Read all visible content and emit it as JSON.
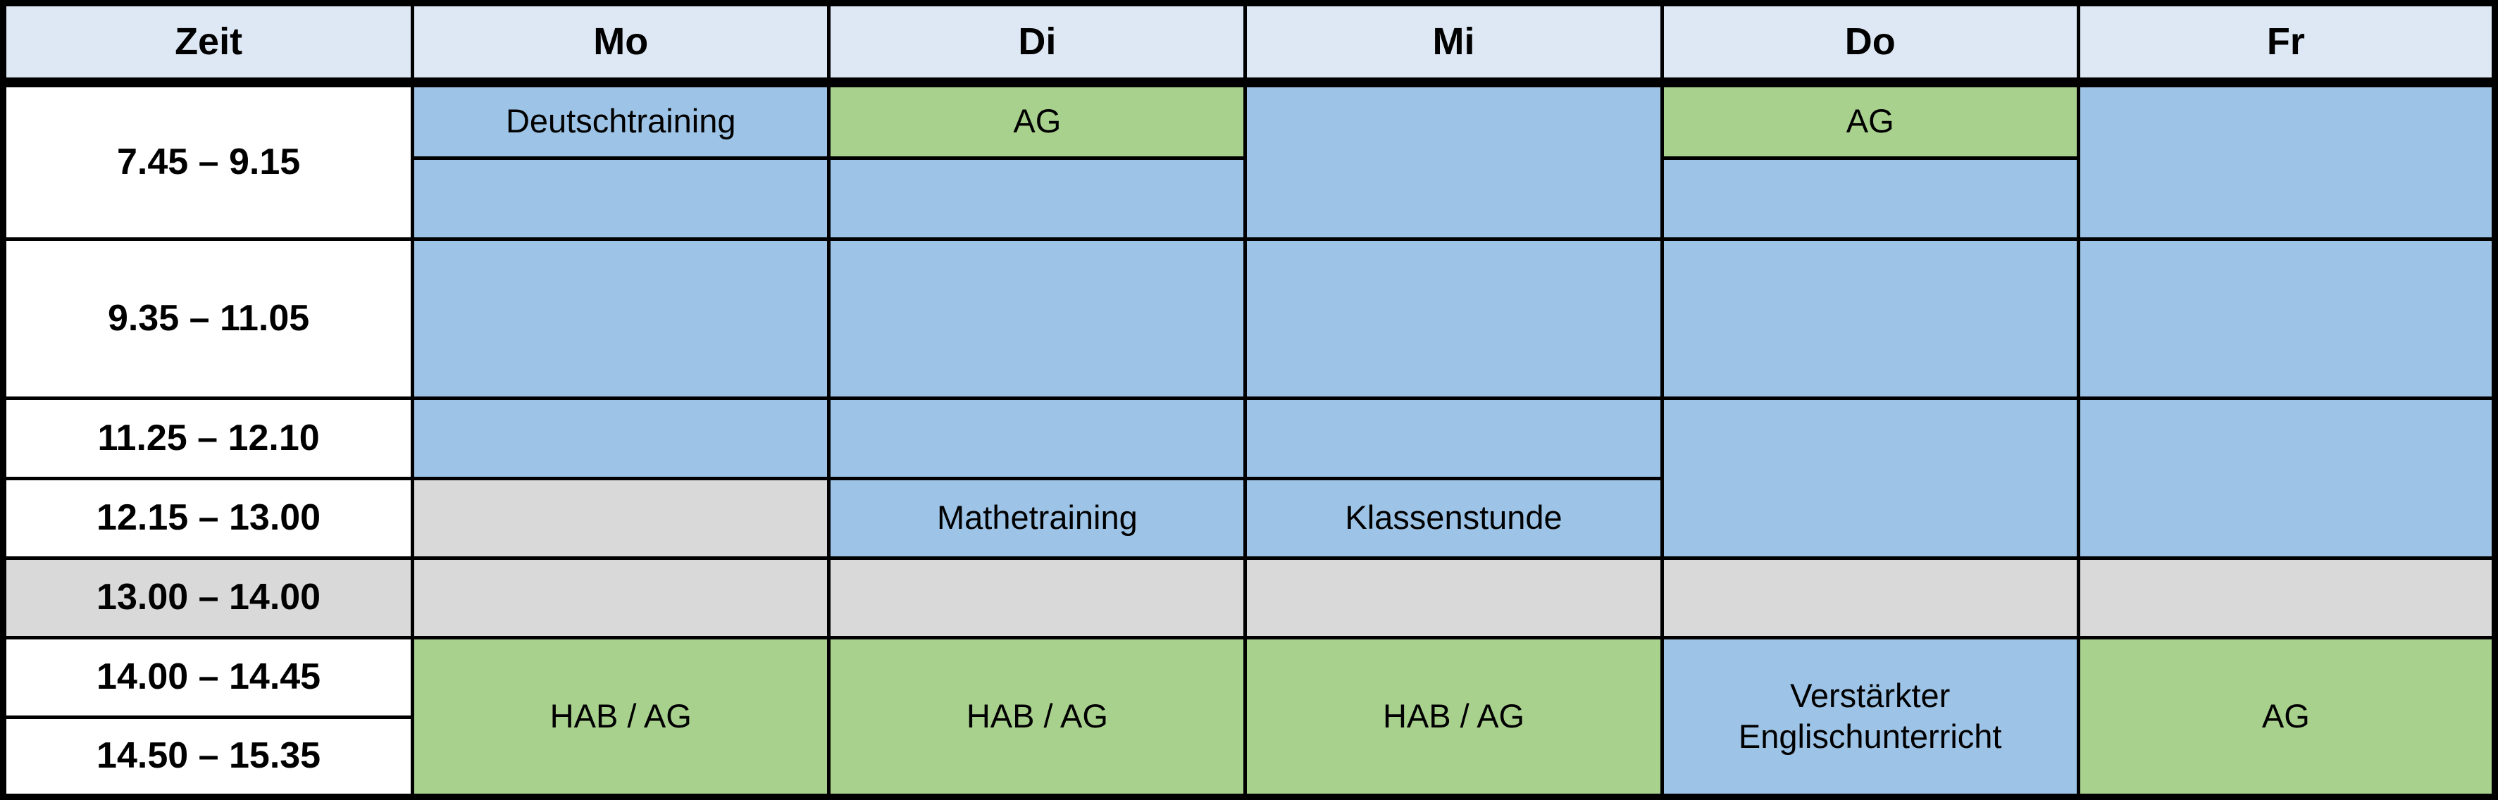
{
  "table": {
    "header": {
      "zeit": "Zeit",
      "mo": "Mo",
      "di": "Di",
      "mi": "Mi",
      "do": "Do",
      "fr": "Fr"
    },
    "times": {
      "r1": "7.45 – 9.15",
      "r2": "9.35 – 11.05",
      "r3": "11.25 – 12.10",
      "r4": "12.15 – 13.00",
      "r5": "13.00 – 14.00",
      "r6": "14.00 – 14.45",
      "r7": "14.50 – 15.35"
    },
    "entries": {
      "mo_745": "Deutschtraining",
      "di_745": "AG",
      "do_745": "AG",
      "di_1215": "Mathetraining",
      "mi_1215": "Klassenstunde",
      "mo_afternoon": "HAB / AG",
      "di_afternoon": "HAB / AG",
      "mi_afternoon": "HAB / AG",
      "do_afternoon": "Verstärkter Englischunterricht",
      "fr_afternoon": "AG"
    }
  },
  "colors": {
    "header_bg": "#dee8f4",
    "lesson_blue": "#9dc3e6",
    "lesson_green": "#a9d18e",
    "blocked_gray": "#d9d9d9",
    "cell_white": "#ffffff",
    "border_black": "#000000"
  }
}
